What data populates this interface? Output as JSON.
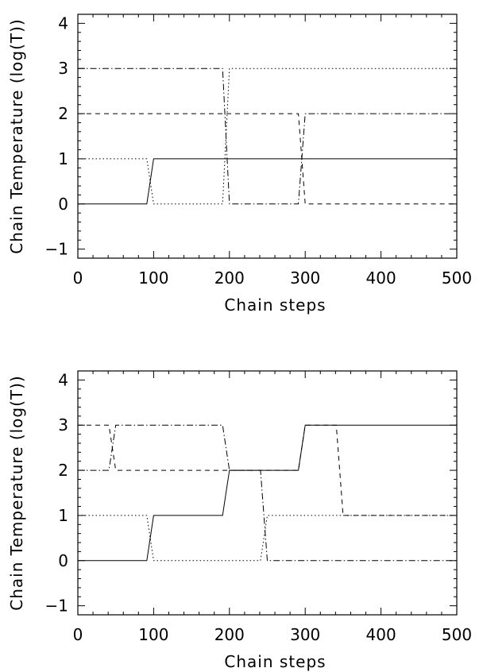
{
  "chart_data": [
    {
      "type": "line",
      "xlabel": "Chain steps",
      "ylabel": "Chain Temperature (log(T))",
      "xlim": [
        0,
        500
      ],
      "ylim": [
        -1.2,
        4.2
      ],
      "xticks": [
        0,
        100,
        200,
        300,
        400,
        500
      ],
      "yticks": [
        -1,
        0,
        1,
        2,
        3,
        4
      ],
      "grid": false,
      "series": [
        {
          "style": "solid",
          "x": [
            0,
            91,
            100,
            500
          ],
          "y": [
            0,
            0,
            1,
            1
          ]
        },
        {
          "style": "dotted",
          "x": [
            0,
            91,
            100,
            191,
            200,
            500
          ],
          "y": [
            1,
            1,
            0,
            0,
            3,
            3
          ]
        },
        {
          "style": "dashed",
          "x": [
            0,
            291,
            300,
            500
          ],
          "y": [
            2,
            2,
            0,
            0
          ]
        },
        {
          "style": "dashdot",
          "x": [
            0,
            191,
            200,
            291,
            300,
            500
          ],
          "y": [
            3,
            3,
            0,
            0,
            2,
            2
          ]
        }
      ]
    },
    {
      "type": "line",
      "xlabel": "Chain steps",
      "ylabel": "Chain Temperature (log(T))",
      "xlim": [
        0,
        500
      ],
      "ylim": [
        -1.2,
        4.2
      ],
      "xticks": [
        0,
        100,
        200,
        300,
        400,
        500
      ],
      "yticks": [
        -1,
        0,
        1,
        2,
        3,
        4
      ],
      "grid": false,
      "series": [
        {
          "style": "solid",
          "x": [
            0,
            91,
            100,
            191,
            200,
            291,
            300,
            500
          ],
          "y": [
            0,
            0,
            1,
            1,
            2,
            2,
            3,
            3
          ]
        },
        {
          "style": "dotted",
          "x": [
            0,
            91,
            100,
            241,
            250,
            500
          ],
          "y": [
            1,
            1,
            0,
            0,
            1,
            1
          ]
        },
        {
          "style": "dashed",
          "x": [
            0,
            41,
            50,
            291,
            300,
            341,
            350,
            500
          ],
          "y": [
            3,
            3,
            2,
            2,
            3,
            3,
            1,
            1
          ]
        },
        {
          "style": "dashdot",
          "x": [
            0,
            41,
            50,
            191,
            200,
            241,
            250,
            500
          ],
          "y": [
            2,
            2,
            3,
            3,
            2,
            2,
            0,
            0
          ]
        }
      ]
    }
  ]
}
